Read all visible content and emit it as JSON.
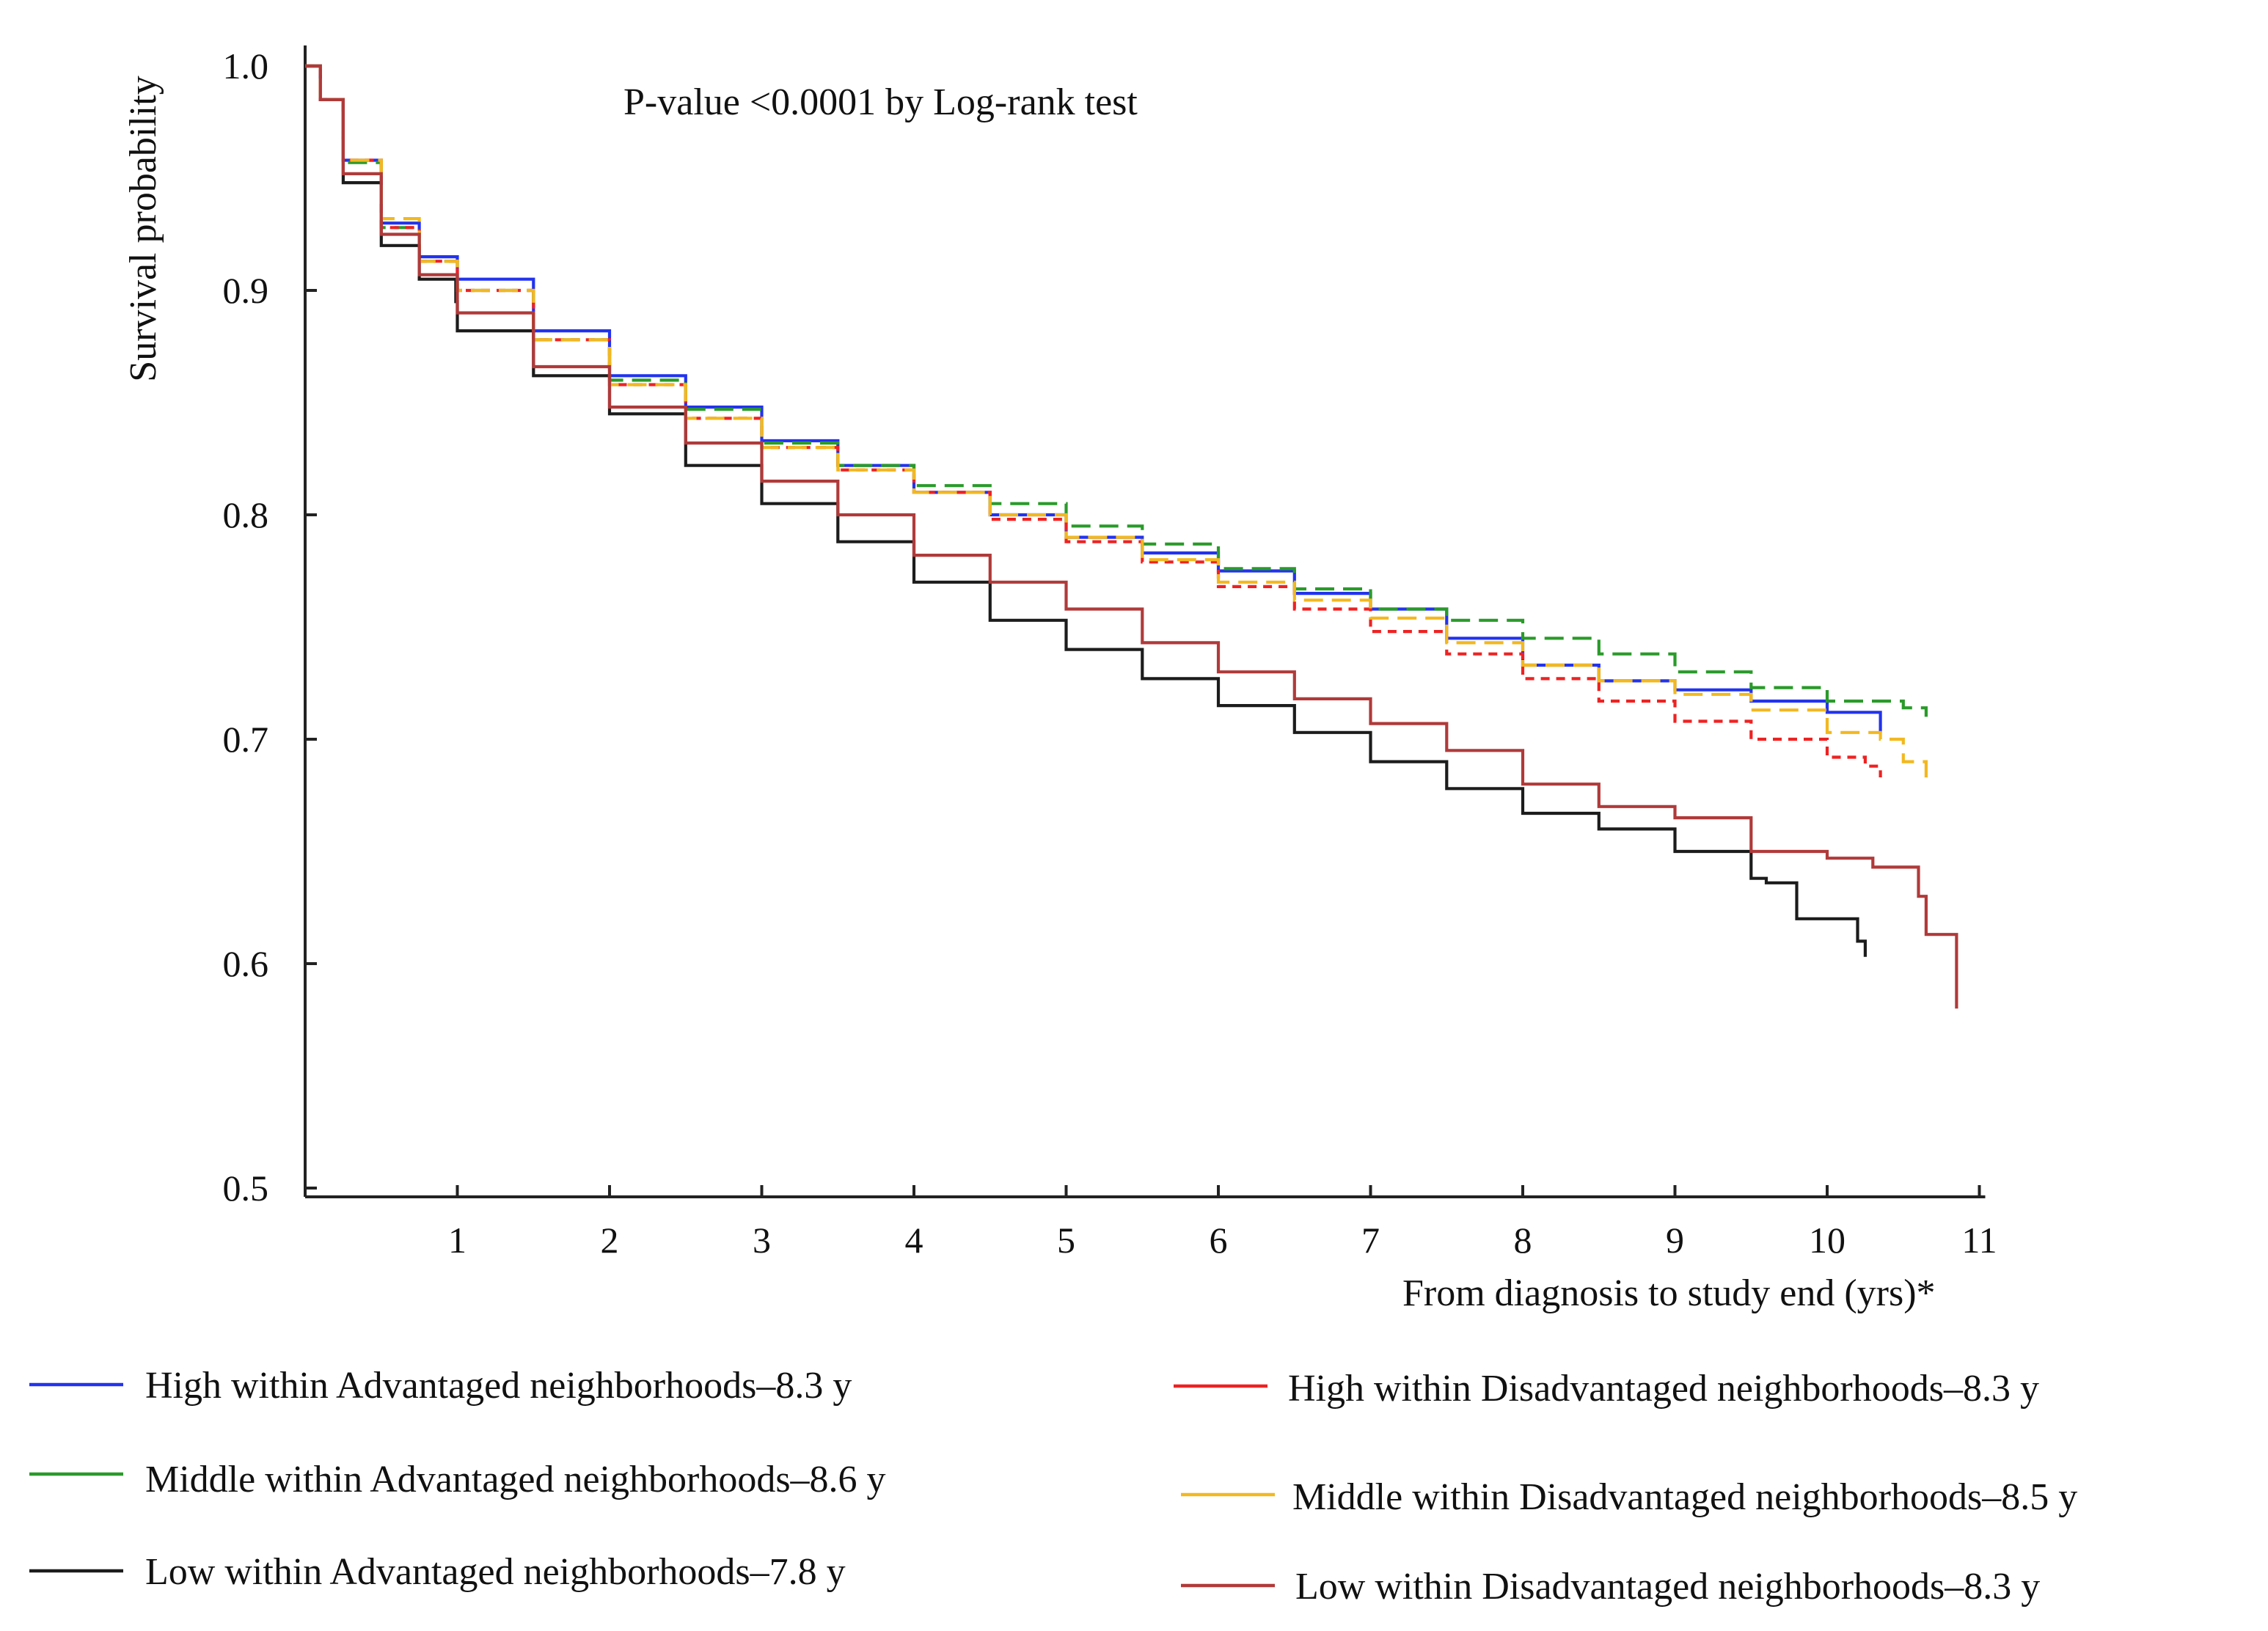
{
  "chart_data": {
    "type": "line",
    "subtitle": "P-value <0.0001 by Log-rank test",
    "xlabel": "From diagnosis to study end (yrs)*",
    "ylabel": "Survival probability",
    "xlim": [
      0,
      11
    ],
    "ylim": [
      0.5,
      1.0
    ],
    "xticks": [
      1,
      2,
      3,
      4,
      5,
      6,
      7,
      8,
      9,
      10,
      11
    ],
    "xtick_labels": [
      "1",
      "2",
      "3",
      "4",
      "5",
      "6",
      "7",
      "8",
      "9",
      "10",
      "11"
    ],
    "yticks": [
      0.5,
      0.6,
      0.7,
      0.8,
      0.9,
      1.0
    ],
    "ytick_labels": [
      "0.5",
      "0.6",
      "0.7",
      "0.8",
      "0.9",
      "1.0"
    ],
    "grid": false,
    "legend_position": "bottom",
    "series": [
      {
        "name": "High within Advantaged neighborhoods–8.3 y",
        "color": "#2233ee",
        "style": "solid",
        "points": [
          [
            0,
            1.0
          ],
          [
            0.1,
            0.985
          ],
          [
            0.25,
            0.958
          ],
          [
            0.5,
            0.93
          ],
          [
            0.75,
            0.915
          ],
          [
            1,
            0.905
          ],
          [
            1.5,
            0.882
          ],
          [
            2,
            0.862
          ],
          [
            2.5,
            0.848
          ],
          [
            3,
            0.833
          ],
          [
            3.5,
            0.822
          ],
          [
            4,
            0.81
          ],
          [
            4.5,
            0.8
          ],
          [
            5,
            0.79
          ],
          [
            5.5,
            0.783
          ],
          [
            6,
            0.775
          ],
          [
            6.5,
            0.765
          ],
          [
            7,
            0.758
          ],
          [
            7.5,
            0.745
          ],
          [
            8,
            0.733
          ],
          [
            8.5,
            0.726
          ],
          [
            9,
            0.722
          ],
          [
            9.5,
            0.717
          ],
          [
            10,
            0.712
          ],
          [
            10.35,
            0.703
          ]
        ]
      },
      {
        "name": "Middle within Advantaged neighborhoods–8.6 y",
        "color": "#2a9a2a",
        "style": "dashed",
        "points": [
          [
            0,
            1.0
          ],
          [
            0.1,
            0.985
          ],
          [
            0.25,
            0.957
          ],
          [
            0.5,
            0.928
          ],
          [
            0.75,
            0.913
          ],
          [
            1,
            0.9
          ],
          [
            1.5,
            0.878
          ],
          [
            2,
            0.86
          ],
          [
            2.5,
            0.847
          ],
          [
            3,
            0.832
          ],
          [
            3.5,
            0.822
          ],
          [
            4,
            0.813
          ],
          [
            4.5,
            0.805
          ],
          [
            5,
            0.795
          ],
          [
            5.5,
            0.787
          ],
          [
            6,
            0.776
          ],
          [
            6.5,
            0.767
          ],
          [
            7,
            0.758
          ],
          [
            7.5,
            0.753
          ],
          [
            8,
            0.745
          ],
          [
            8.5,
            0.738
          ],
          [
            9,
            0.73
          ],
          [
            9.5,
            0.723
          ],
          [
            10,
            0.717
          ],
          [
            10.5,
            0.714
          ],
          [
            10.65,
            0.71
          ]
        ]
      },
      {
        "name": "Low within Advantaged neighborhoods–7.8 y",
        "color": "#1c1c1c",
        "style": "solid",
        "points": [
          [
            0,
            1.0
          ],
          [
            0.1,
            0.985
          ],
          [
            0.25,
            0.948
          ],
          [
            0.5,
            0.92
          ],
          [
            0.75,
            0.905
          ],
          [
            0.99,
            0.895
          ],
          [
            1,
            0.882
          ],
          [
            1.5,
            0.862
          ],
          [
            2,
            0.845
          ],
          [
            2.5,
            0.822
          ],
          [
            3,
            0.805
          ],
          [
            3.5,
            0.788
          ],
          [
            4,
            0.77
          ],
          [
            4.5,
            0.753
          ],
          [
            5,
            0.74
          ],
          [
            5.5,
            0.727
          ],
          [
            6,
            0.715
          ],
          [
            6.5,
            0.703
          ],
          [
            7,
            0.69
          ],
          [
            7.5,
            0.678
          ],
          [
            8,
            0.667
          ],
          [
            8.5,
            0.66
          ],
          [
            9,
            0.65
          ],
          [
            9.5,
            0.638
          ],
          [
            9.6,
            0.636
          ],
          [
            9.8,
            0.62
          ],
          [
            10.2,
            0.61
          ],
          [
            10.25,
            0.603
          ]
        ]
      },
      {
        "name": "High within Disadvantaged neighborhoods–8.3 y",
        "color": "#ee2222",
        "style": "dotted",
        "points": [
          [
            0,
            1.0
          ],
          [
            0.1,
            0.985
          ],
          [
            0.25,
            0.958
          ],
          [
            0.5,
            0.928
          ],
          [
            0.75,
            0.913
          ],
          [
            1,
            0.9
          ],
          [
            1.5,
            0.878
          ],
          [
            2,
            0.858
          ],
          [
            2.5,
            0.843
          ],
          [
            3,
            0.83
          ],
          [
            3.5,
            0.82
          ],
          [
            4,
            0.81
          ],
          [
            4.5,
            0.798
          ],
          [
            5,
            0.788
          ],
          [
            5.5,
            0.779
          ],
          [
            6,
            0.768
          ],
          [
            6.5,
            0.758
          ],
          [
            7,
            0.748
          ],
          [
            7.5,
            0.738
          ],
          [
            8,
            0.727
          ],
          [
            8.5,
            0.717
          ],
          [
            9,
            0.708
          ],
          [
            9.5,
            0.7
          ],
          [
            10,
            0.692
          ],
          [
            10.25,
            0.688
          ],
          [
            10.35,
            0.683
          ]
        ]
      },
      {
        "name": "Middle within Disadvantaged neighborhoods–8.5 y",
        "color": "#f2b820",
        "style": "dashed",
        "points": [
          [
            0,
            1.0
          ],
          [
            0.1,
            0.985
          ],
          [
            0.25,
            0.958
          ],
          [
            0.5,
            0.932
          ],
          [
            0.75,
            0.913
          ],
          [
            1,
            0.9
          ],
          [
            1.5,
            0.878
          ],
          [
            2,
            0.858
          ],
          [
            2.5,
            0.843
          ],
          [
            3,
            0.83
          ],
          [
            3.5,
            0.82
          ],
          [
            4,
            0.81
          ],
          [
            4.5,
            0.8
          ],
          [
            5,
            0.79
          ],
          [
            5.5,
            0.78
          ],
          [
            6,
            0.77
          ],
          [
            6.5,
            0.762
          ],
          [
            7,
            0.754
          ],
          [
            7.5,
            0.743
          ],
          [
            8,
            0.733
          ],
          [
            8.5,
            0.726
          ],
          [
            9,
            0.72
          ],
          [
            9.5,
            0.713
          ],
          [
            10,
            0.703
          ],
          [
            10.35,
            0.7
          ],
          [
            10.5,
            0.69
          ],
          [
            10.65,
            0.68
          ]
        ]
      },
      {
        "name": "Low within Disadvantaged neighborhoods–8.3 y",
        "color": "#b03a3a",
        "style": "solid",
        "points": [
          [
            0,
            1.0
          ],
          [
            0.1,
            0.985
          ],
          [
            0.25,
            0.952
          ],
          [
            0.5,
            0.925
          ],
          [
            0.75,
            0.907
          ],
          [
            1,
            0.89
          ],
          [
            1.5,
            0.866
          ],
          [
            2,
            0.848
          ],
          [
            2.5,
            0.832
          ],
          [
            3,
            0.815
          ],
          [
            3.5,
            0.8
          ],
          [
            4,
            0.782
          ],
          [
            4.5,
            0.77
          ],
          [
            5,
            0.758
          ],
          [
            5.5,
            0.743
          ],
          [
            6,
            0.73
          ],
          [
            6.5,
            0.718
          ],
          [
            7,
            0.707
          ],
          [
            7.5,
            0.695
          ],
          [
            8,
            0.68
          ],
          [
            8.5,
            0.67
          ],
          [
            9,
            0.665
          ],
          [
            9.5,
            0.65
          ],
          [
            10,
            0.647
          ],
          [
            10.3,
            0.643
          ],
          [
            10.6,
            0.63
          ],
          [
            10.65,
            0.613
          ],
          [
            10.85,
            0.613
          ],
          [
            10.85,
            0.58
          ]
        ]
      }
    ]
  }
}
